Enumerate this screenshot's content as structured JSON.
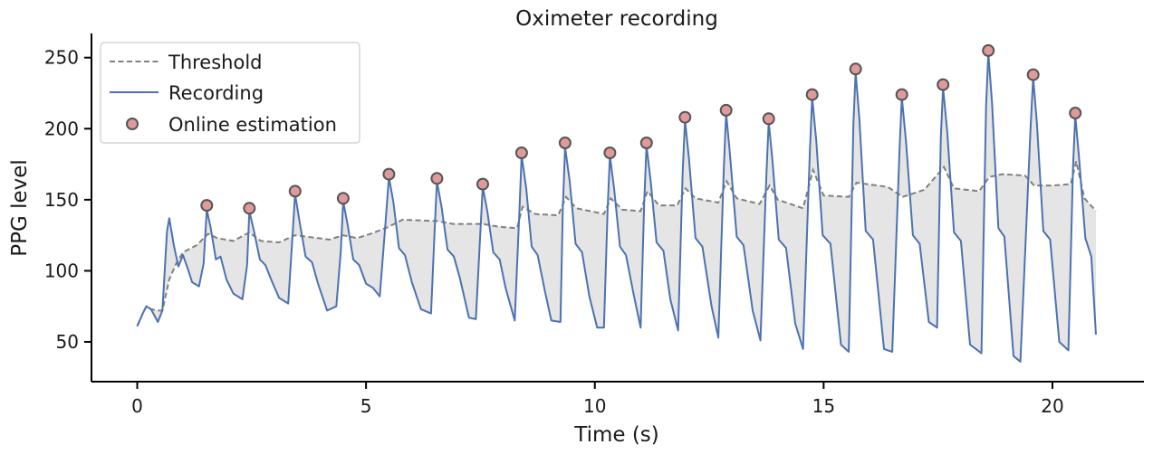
{
  "chart_data": {
    "type": "line",
    "title": "Oximeter recording",
    "xlabel": "Time (s)",
    "ylabel": "PPG level",
    "xlim": [
      -1,
      22
    ],
    "ylim": [
      22,
      267
    ],
    "xticks": [
      0,
      5,
      10,
      15,
      20
    ],
    "yticks": [
      50,
      100,
      150,
      200,
      250
    ],
    "legend": {
      "position": "top-left",
      "entries": [
        "Threshold",
        "Recording",
        "Online estimation"
      ]
    },
    "colors": {
      "recording": "#4c72b0",
      "threshold": "#808080",
      "fill": "#e5e5e5",
      "marker_fill": "#e09a9a",
      "marker_edge": "#555555"
    },
    "series": [
      {
        "name": "Recording",
        "style": "solid",
        "points": [
          [
            0.0,
            61
          ],
          [
            0.12,
            70
          ],
          [
            0.2,
            75
          ],
          [
            0.3,
            73
          ],
          [
            0.45,
            64
          ],
          [
            0.55,
            72
          ],
          [
            0.65,
            128
          ],
          [
            0.7,
            137
          ],
          [
            0.8,
            118
          ],
          [
            0.9,
            103
          ],
          [
            1.0,
            111
          ],
          [
            1.1,
            102
          ],
          [
            1.2,
            92
          ],
          [
            1.35,
            89
          ],
          [
            1.45,
            105
          ],
          [
            1.52,
            143
          ],
          [
            1.6,
            131
          ],
          [
            1.72,
            108
          ],
          [
            1.82,
            110
          ],
          [
            1.95,
            94
          ],
          [
            2.1,
            84
          ],
          [
            2.3,
            80
          ],
          [
            2.4,
            104
          ],
          [
            2.45,
            142
          ],
          [
            2.55,
            128
          ],
          [
            2.68,
            108
          ],
          [
            2.8,
            104
          ],
          [
            2.95,
            92
          ],
          [
            3.1,
            81
          ],
          [
            3.3,
            77
          ],
          [
            3.38,
            118
          ],
          [
            3.45,
            154
          ],
          [
            3.55,
            134
          ],
          [
            3.68,
            110
          ],
          [
            3.82,
            106
          ],
          [
            3.95,
            91
          ],
          [
            4.15,
            72
          ],
          [
            4.35,
            75
          ],
          [
            4.45,
            114
          ],
          [
            4.5,
            149
          ],
          [
            4.6,
            132
          ],
          [
            4.72,
            108
          ],
          [
            4.85,
            104
          ],
          [
            5.0,
            91
          ],
          [
            5.15,
            88
          ],
          [
            5.3,
            82
          ],
          [
            5.42,
            131
          ],
          [
            5.5,
            166
          ],
          [
            5.6,
            148
          ],
          [
            5.72,
            116
          ],
          [
            5.85,
            111
          ],
          [
            6.0,
            92
          ],
          [
            6.2,
            73
          ],
          [
            6.42,
            70
          ],
          [
            6.5,
            129
          ],
          [
            6.55,
            163
          ],
          [
            6.65,
            145
          ],
          [
            6.78,
            115
          ],
          [
            6.92,
            110
          ],
          [
            7.05,
            95
          ],
          [
            7.25,
            67
          ],
          [
            7.4,
            66
          ],
          [
            7.5,
            128
          ],
          [
            7.55,
            159
          ],
          [
            7.65,
            142
          ],
          [
            7.78,
            113
          ],
          [
            7.92,
            108
          ],
          [
            8.05,
            88
          ],
          [
            8.25,
            65
          ],
          [
            8.35,
            141
          ],
          [
            8.4,
            181
          ],
          [
            8.5,
            158
          ],
          [
            8.62,
            117
          ],
          [
            8.75,
            111
          ],
          [
            8.9,
            87
          ],
          [
            9.05,
            65
          ],
          [
            9.25,
            64
          ],
          [
            9.3,
            144
          ],
          [
            9.35,
            187
          ],
          [
            9.45,
            163
          ],
          [
            9.58,
            119
          ],
          [
            9.72,
            113
          ],
          [
            9.88,
            82
          ],
          [
            10.05,
            60
          ],
          [
            10.2,
            60
          ],
          [
            10.28,
            144
          ],
          [
            10.33,
            181
          ],
          [
            10.42,
            158
          ],
          [
            10.55,
            117
          ],
          [
            10.68,
            111
          ],
          [
            10.85,
            83
          ],
          [
            11.0,
            60
          ],
          [
            11.08,
            149
          ],
          [
            11.13,
            188
          ],
          [
            11.22,
            163
          ],
          [
            11.35,
            120
          ],
          [
            11.5,
            114
          ],
          [
            11.65,
            80
          ],
          [
            11.82,
            58
          ],
          [
            11.92,
            169
          ],
          [
            11.97,
            206
          ],
          [
            12.06,
            178
          ],
          [
            12.2,
            123
          ],
          [
            12.35,
            117
          ],
          [
            12.55,
            75
          ],
          [
            12.7,
            53
          ],
          [
            12.82,
            173
          ],
          [
            12.87,
            211
          ],
          [
            12.95,
            183
          ],
          [
            13.1,
            124
          ],
          [
            13.25,
            118
          ],
          [
            13.45,
            72
          ],
          [
            13.62,
            51
          ],
          [
            13.75,
            168
          ],
          [
            13.8,
            205
          ],
          [
            13.88,
            178
          ],
          [
            14.02,
            122
          ],
          [
            14.18,
            116
          ],
          [
            14.38,
            63
          ],
          [
            14.55,
            45
          ],
          [
            14.7,
            185
          ],
          [
            14.75,
            222
          ],
          [
            14.84,
            191
          ],
          [
            14.98,
            125
          ],
          [
            15.15,
            119
          ],
          [
            15.38,
            48
          ],
          [
            15.55,
            43
          ],
          [
            15.65,
            203
          ],
          [
            15.7,
            240
          ],
          [
            15.78,
            207
          ],
          [
            15.92,
            128
          ],
          [
            16.08,
            122
          ],
          [
            16.32,
            45
          ],
          [
            16.5,
            43
          ],
          [
            16.66,
            186
          ],
          [
            16.71,
            222
          ],
          [
            16.8,
            191
          ],
          [
            16.95,
            125
          ],
          [
            17.1,
            119
          ],
          [
            17.3,
            64
          ],
          [
            17.48,
            60
          ],
          [
            17.56,
            193
          ],
          [
            17.61,
            229
          ],
          [
            17.7,
            198
          ],
          [
            17.85,
            127
          ],
          [
            18.0,
            121
          ],
          [
            18.2,
            48
          ],
          [
            18.45,
            42
          ],
          [
            18.55,
            216
          ],
          [
            18.6,
            253
          ],
          [
            18.68,
            218
          ],
          [
            18.82,
            130
          ],
          [
            18.95,
            124
          ],
          [
            19.15,
            40
          ],
          [
            19.3,
            36
          ],
          [
            19.52,
            199
          ],
          [
            19.58,
            236
          ],
          [
            19.66,
            204
          ],
          [
            19.8,
            128
          ],
          [
            19.95,
            122
          ],
          [
            20.15,
            50
          ],
          [
            20.35,
            44
          ],
          [
            20.45,
            173
          ],
          [
            20.5,
            209
          ],
          [
            20.58,
            180
          ],
          [
            20.72,
            123
          ],
          [
            20.85,
            110
          ],
          [
            20.95,
            55
          ]
        ]
      },
      {
        "name": "Threshold",
        "style": "dashed",
        "points": [
          [
            0.0,
            61
          ],
          [
            0.12,
            70
          ],
          [
            0.2,
            75
          ],
          [
            0.3,
            73
          ],
          [
            0.45,
            72
          ],
          [
            0.55,
            72
          ],
          [
            0.7,
            94
          ],
          [
            0.85,
            105
          ],
          [
            1.0,
            113
          ],
          [
            1.3,
            118
          ],
          [
            1.55,
            126
          ],
          [
            1.75,
            123
          ],
          [
            2.1,
            121
          ],
          [
            2.45,
            127
          ],
          [
            2.7,
            121
          ],
          [
            3.1,
            120
          ],
          [
            3.45,
            125
          ],
          [
            3.7,
            124
          ],
          [
            4.2,
            122
          ],
          [
            4.5,
            125
          ],
          [
            4.8,
            123
          ],
          [
            5.1,
            126
          ],
          [
            5.5,
            131
          ],
          [
            5.8,
            136
          ],
          [
            6.55,
            135
          ],
          [
            6.9,
            133
          ],
          [
            7.55,
            133
          ],
          [
            7.9,
            131
          ],
          [
            8.3,
            130
          ],
          [
            8.42,
            145
          ],
          [
            8.7,
            140
          ],
          [
            9.2,
            139
          ],
          [
            9.37,
            152
          ],
          [
            9.6,
            144
          ],
          [
            10.2,
            140
          ],
          [
            10.35,
            151
          ],
          [
            10.6,
            143
          ],
          [
            11.0,
            142
          ],
          [
            11.15,
            156
          ],
          [
            11.4,
            146
          ],
          [
            11.8,
            146
          ],
          [
            11.98,
            158
          ],
          [
            12.2,
            151
          ],
          [
            12.7,
            148
          ],
          [
            12.88,
            163
          ],
          [
            13.1,
            151
          ],
          [
            13.6,
            147
          ],
          [
            13.82,
            160
          ],
          [
            14.0,
            150
          ],
          [
            14.55,
            144
          ],
          [
            14.77,
            171
          ],
          [
            15.0,
            153
          ],
          [
            15.55,
            152
          ],
          [
            15.72,
            162
          ],
          [
            16.4,
            159
          ],
          [
            16.73,
            152
          ],
          [
            17.2,
            157
          ],
          [
            17.63,
            173
          ],
          [
            17.85,
            158
          ],
          [
            18.4,
            156
          ],
          [
            18.62,
            166
          ],
          [
            18.9,
            168
          ],
          [
            19.4,
            167
          ],
          [
            19.6,
            160
          ],
          [
            20.0,
            160
          ],
          [
            20.4,
            161
          ],
          [
            20.52,
            177
          ],
          [
            20.7,
            151
          ],
          [
            20.95,
            142
          ]
        ]
      },
      {
        "name": "Online estimation",
        "style": "markers",
        "points": [
          [
            1.52,
            146
          ],
          [
            2.45,
            144
          ],
          [
            3.45,
            156
          ],
          [
            4.5,
            151
          ],
          [
            5.5,
            168
          ],
          [
            6.55,
            165
          ],
          [
            7.55,
            161
          ],
          [
            8.4,
            183
          ],
          [
            9.35,
            190
          ],
          [
            10.33,
            183
          ],
          [
            11.13,
            190
          ],
          [
            11.97,
            208
          ],
          [
            12.87,
            213
          ],
          [
            13.8,
            207
          ],
          [
            14.75,
            224
          ],
          [
            15.7,
            242
          ],
          [
            16.71,
            224
          ],
          [
            17.61,
            231
          ],
          [
            18.6,
            255
          ],
          [
            19.58,
            238
          ],
          [
            20.5,
            211
          ]
        ]
      }
    ]
  }
}
